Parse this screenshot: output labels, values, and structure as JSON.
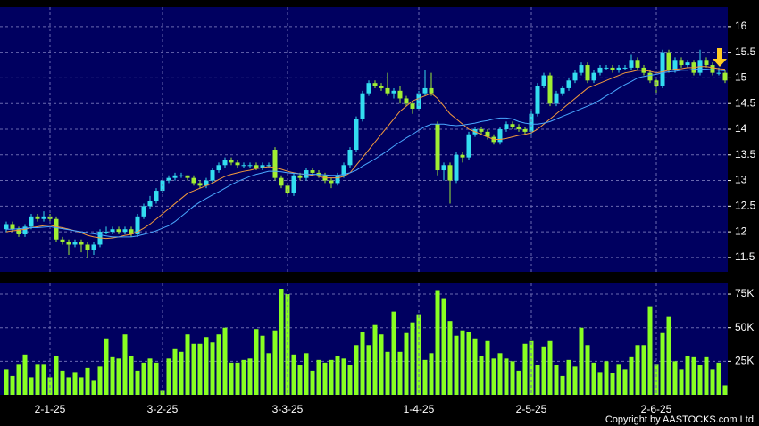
{
  "chart_data": [
    {
      "type": "candlestick",
      "ylim": [
        11.22,
        16.38
      ],
      "yticks": [
        11.5,
        12,
        12.5,
        13,
        13.5,
        14,
        14.5,
        15,
        15.5,
        16
      ],
      "grid": true,
      "up_color": "#33ddf0",
      "down_color": "#a0ee33",
      "ohlc": [
        [
          12.05,
          12.2,
          12.0,
          12.15
        ],
        [
          12.15,
          12.2,
          12.0,
          12.05
        ],
        [
          12.05,
          12.1,
          11.9,
          11.95
        ],
        [
          11.95,
          12.15,
          11.9,
          12.1
        ],
        [
          12.1,
          12.35,
          12.05,
          12.3
        ],
        [
          12.3,
          12.35,
          12.2,
          12.25
        ],
        [
          12.25,
          12.4,
          12.2,
          12.3
        ],
        [
          12.3,
          12.35,
          12.2,
          12.25
        ],
        [
          12.25,
          12.3,
          11.8,
          11.85
        ],
        [
          11.85,
          11.9,
          11.75,
          11.8
        ],
        [
          11.8,
          11.85,
          11.55,
          11.75
        ],
        [
          11.75,
          11.85,
          11.7,
          11.8
        ],
        [
          11.8,
          11.85,
          11.6,
          11.75
        ],
        [
          11.75,
          11.8,
          11.5,
          11.65
        ],
        [
          11.65,
          11.8,
          11.55,
          11.75
        ],
        [
          11.75,
          12.05,
          11.7,
          12.0
        ],
        [
          12.0,
          12.1,
          11.95,
          12.0
        ],
        [
          12.0,
          12.1,
          11.95,
          12.05
        ],
        [
          12.05,
          12.1,
          11.95,
          12.0
        ],
        [
          12.0,
          12.1,
          11.95,
          12.05
        ],
        [
          12.05,
          12.1,
          11.9,
          11.95
        ],
        [
          11.95,
          12.35,
          11.9,
          12.3
        ],
        [
          12.3,
          12.55,
          12.25,
          12.5
        ],
        [
          12.5,
          12.7,
          12.45,
          12.6
        ],
        [
          12.6,
          12.85,
          12.55,
          12.8
        ],
        [
          12.8,
          13.05,
          12.75,
          13.0
        ],
        [
          13.0,
          13.1,
          12.95,
          13.05
        ],
        [
          13.05,
          13.15,
          13.0,
          13.1
        ],
        [
          13.1,
          13.15,
          13.05,
          13.1
        ],
        [
          13.1,
          13.1,
          13.0,
          13.05
        ],
        [
          13.05,
          13.1,
          12.9,
          12.95
        ],
        [
          12.95,
          13.0,
          12.85,
          12.9
        ],
        [
          12.9,
          13.05,
          12.85,
          13.0
        ],
        [
          13.0,
          13.25,
          12.95,
          13.2
        ],
        [
          13.2,
          13.35,
          13.15,
          13.3
        ],
        [
          13.3,
          13.45,
          13.25,
          13.4
        ],
        [
          13.4,
          13.45,
          13.3,
          13.35
        ],
        [
          13.35,
          13.4,
          13.25,
          13.3
        ],
        [
          13.3,
          13.35,
          13.25,
          13.3
        ],
        [
          13.3,
          13.35,
          13.25,
          13.3
        ],
        [
          13.3,
          13.35,
          13.2,
          13.25
        ],
        [
          13.25,
          13.35,
          13.2,
          13.3
        ],
        [
          13.3,
          13.35,
          13.25,
          13.3
        ],
        [
          13.6,
          13.65,
          13.0,
          13.05
        ],
        [
          13.05,
          13.1,
          12.85,
          12.9
        ],
        [
          12.9,
          12.95,
          12.7,
          12.75
        ],
        [
          12.75,
          13.15,
          12.7,
          13.1
        ],
        [
          13.1,
          13.15,
          13.0,
          13.05
        ],
        [
          13.05,
          13.25,
          13.0,
          13.2
        ],
        [
          13.2,
          13.25,
          13.1,
          13.15
        ],
        [
          13.15,
          13.2,
          13.05,
          13.1
        ],
        [
          13.1,
          13.15,
          12.95,
          13.0
        ],
        [
          13.0,
          13.05,
          12.85,
          12.95
        ],
        [
          12.95,
          13.15,
          12.9,
          13.1
        ],
        [
          13.1,
          13.35,
          13.05,
          13.3
        ],
        [
          13.3,
          13.65,
          13.25,
          13.6
        ],
        [
          13.6,
          14.25,
          13.55,
          14.2
        ],
        [
          14.2,
          14.75,
          14.15,
          14.7
        ],
        [
          14.7,
          14.95,
          14.65,
          14.9
        ],
        [
          14.9,
          14.95,
          14.8,
          14.85
        ],
        [
          14.85,
          14.9,
          14.75,
          14.8
        ],
        [
          14.8,
          15.1,
          14.65,
          14.7
        ],
        [
          14.7,
          14.8,
          14.6,
          14.75
        ],
        [
          14.75,
          14.85,
          14.5,
          14.6
        ],
        [
          14.6,
          14.65,
          14.45,
          14.5
        ],
        [
          14.5,
          14.55,
          14.3,
          14.4
        ],
        [
          14.4,
          14.75,
          14.35,
          14.7
        ],
        [
          14.7,
          15.15,
          14.65,
          14.8
        ],
        [
          14.8,
          15.1,
          14.65,
          14.7
        ],
        [
          14.1,
          14.15,
          13.1,
          13.2
        ],
        [
          13.2,
          13.35,
          13.0,
          13.3
        ],
        [
          13.3,
          13.35,
          12.55,
          13.0
        ],
        [
          13.0,
          13.55,
          12.95,
          13.5
        ],
        [
          13.5,
          13.55,
          13.35,
          13.45
        ],
        [
          13.45,
          13.95,
          13.4,
          13.9
        ],
        [
          13.9,
          14.05,
          13.85,
          14.0
        ],
        [
          14.0,
          14.05,
          13.9,
          13.95
        ],
        [
          13.95,
          14.0,
          13.8,
          13.85
        ],
        [
          13.85,
          13.9,
          13.7,
          13.75
        ],
        [
          13.75,
          14.05,
          13.7,
          14.0
        ],
        [
          14.0,
          14.15,
          13.95,
          14.1
        ],
        [
          14.1,
          14.15,
          14.0,
          14.05
        ],
        [
          14.05,
          14.1,
          13.95,
          14.0
        ],
        [
          14.0,
          14.05,
          13.9,
          13.95
        ],
        [
          13.95,
          14.35,
          13.9,
          14.3
        ],
        [
          14.3,
          14.9,
          14.25,
          14.85
        ],
        [
          14.85,
          15.1,
          14.8,
          15.05
        ],
        [
          15.05,
          15.1,
          14.45,
          14.5
        ],
        [
          14.5,
          14.75,
          14.45,
          14.7
        ],
        [
          14.7,
          14.85,
          14.65,
          14.8
        ],
        [
          14.8,
          15.0,
          14.75,
          14.95
        ],
        [
          14.95,
          15.15,
          14.9,
          15.1
        ],
        [
          15.1,
          15.3,
          15.05,
          15.25
        ],
        [
          15.25,
          15.3,
          14.9,
          14.95
        ],
        [
          14.95,
          15.15,
          14.9,
          15.1
        ],
        [
          15.1,
          15.25,
          15.05,
          15.2
        ],
        [
          15.2,
          15.25,
          15.15,
          15.2
        ],
        [
          15.2,
          15.25,
          15.1,
          15.15
        ],
        [
          15.15,
          15.25,
          15.1,
          15.2
        ],
        [
          15.2,
          15.25,
          15.15,
          15.2
        ],
        [
          15.2,
          15.45,
          15.15,
          15.35
        ],
        [
          15.35,
          15.4,
          15.15,
          15.2
        ],
        [
          15.2,
          15.25,
          15.05,
          15.1
        ],
        [
          15.1,
          15.15,
          14.9,
          14.95
        ],
        [
          14.95,
          15.0,
          14.7,
          14.85
        ],
        [
          14.85,
          15.55,
          14.8,
          15.5
        ],
        [
          15.5,
          15.55,
          15.1,
          15.15
        ],
        [
          15.15,
          15.4,
          15.1,
          15.35
        ],
        [
          15.35,
          15.4,
          15.2,
          15.25
        ],
        [
          15.25,
          15.35,
          15.2,
          15.3
        ],
        [
          15.3,
          15.35,
          15.05,
          15.1
        ],
        [
          15.1,
          15.55,
          15.05,
          15.35
        ],
        [
          15.35,
          15.4,
          15.2,
          15.25
        ],
        [
          15.25,
          15.3,
          15.05,
          15.1
        ],
        [
          15.1,
          15.2,
          15.05,
          15.1
        ],
        [
          15.1,
          15.15,
          14.9,
          14.95
        ]
      ],
      "lines": [
        {
          "color": "#f39a3c",
          "values": [
            12.0,
            12.02,
            12.03,
            12.05,
            12.08,
            12.1,
            12.12,
            12.13,
            12.1,
            12.08,
            12.05,
            12.02,
            11.98,
            11.93,
            11.9,
            11.88,
            11.87,
            11.88,
            11.9,
            11.93,
            11.95,
            12.0,
            12.07,
            12.15,
            12.25,
            12.35,
            12.45,
            12.55,
            12.65,
            12.75,
            12.8,
            12.85,
            12.9,
            12.95,
            13.02,
            13.08,
            13.12,
            13.15,
            13.18,
            13.2,
            13.23,
            13.25,
            13.27,
            13.25,
            13.22,
            13.18,
            13.15,
            13.13,
            13.12,
            13.1,
            13.08,
            13.05,
            13.05,
            13.05,
            13.08,
            13.15,
            13.3,
            13.45,
            13.6,
            13.75,
            13.9,
            14.05,
            14.2,
            14.35,
            14.45,
            14.55,
            14.6,
            14.65,
            14.7,
            14.6,
            14.45,
            14.3,
            14.2,
            14.1,
            14.0,
            13.95,
            13.9,
            13.85,
            13.8,
            13.8,
            13.82,
            13.85,
            13.88,
            13.9,
            13.93,
            14.0,
            14.1,
            14.2,
            14.3,
            14.4,
            14.5,
            14.6,
            14.7,
            14.8,
            14.85,
            14.9,
            14.95,
            15.0,
            15.05,
            15.1,
            15.12,
            15.15,
            15.15,
            15.13,
            15.1,
            15.12,
            15.15,
            15.17,
            15.18,
            15.2,
            15.2,
            15.22,
            15.22,
            15.2,
            15.18,
            15.17
          ]
        },
        {
          "color": "#4aa8ff",
          "values": [
            12.05,
            12.05,
            12.06,
            12.07,
            12.08,
            12.08,
            12.09,
            12.1,
            12.08,
            12.06,
            12.04,
            12.02,
            12.0,
            11.98,
            11.96,
            11.94,
            11.92,
            11.9,
            11.9,
            11.9,
            11.9,
            11.92,
            11.95,
            11.98,
            12.02,
            12.07,
            12.12,
            12.2,
            12.3,
            12.4,
            12.5,
            12.58,
            12.65,
            12.72,
            12.78,
            12.85,
            12.92,
            12.98,
            13.03,
            13.08,
            13.12,
            13.15,
            13.18,
            13.18,
            13.17,
            13.15,
            13.14,
            13.13,
            13.12,
            13.12,
            13.12,
            13.11,
            13.1,
            13.1,
            13.12,
            13.15,
            13.2,
            13.28,
            13.35,
            13.42,
            13.5,
            13.58,
            13.67,
            13.75,
            13.83,
            13.9,
            13.98,
            14.05,
            14.1,
            14.1,
            14.1,
            14.08,
            14.07,
            14.08,
            14.1,
            14.12,
            14.15,
            14.17,
            14.2,
            14.22,
            14.22,
            14.2,
            14.15,
            14.12,
            14.1,
            14.1,
            14.12,
            14.15,
            14.2,
            14.25,
            14.3,
            14.35,
            14.4,
            14.45,
            14.5,
            14.57,
            14.65,
            14.72,
            14.8,
            14.87,
            14.93,
            15.0,
            15.03,
            15.05,
            15.07,
            15.1,
            15.12,
            15.13,
            15.15,
            15.15,
            15.17,
            15.17,
            15.17,
            15.16,
            15.15,
            15.14
          ]
        }
      ]
    },
    {
      "type": "bar",
      "color": "#88ff22",
      "ylim": [
        0,
        83000
      ],
      "yticks": [
        {
          "value": 25000,
          "label": "25K"
        },
        {
          "value": 50000,
          "label": "50K"
        },
        {
          "value": 75000,
          "label": "75K"
        }
      ],
      "grid": true,
      "categories": [
        null,
        null,
        null,
        null,
        null,
        null,
        null,
        "2-1-25",
        null,
        null,
        null,
        null,
        null,
        null,
        null,
        null,
        null,
        null,
        null,
        null,
        null,
        null,
        null,
        null,
        null,
        "3-2-25",
        null,
        null,
        null,
        null,
        null,
        null,
        null,
        null,
        null,
        null,
        null,
        null,
        null,
        null,
        null,
        null,
        null,
        null,
        null,
        "3-3-25",
        null,
        null,
        null,
        null,
        null,
        null,
        null,
        null,
        null,
        null,
        null,
        null,
        null,
        null,
        null,
        null,
        null,
        null,
        null,
        null,
        "1-4-25",
        null,
        null,
        null,
        null,
        null,
        null,
        null,
        null,
        null,
        null,
        null,
        null,
        null,
        null,
        null,
        null,
        null,
        "2-5-25",
        null,
        null,
        null,
        null,
        null,
        null,
        null,
        null,
        null,
        null,
        null,
        null,
        null,
        null,
        null,
        null,
        null,
        null,
        null,
        "2-6-25",
        null,
        null,
        null,
        null,
        null,
        null,
        null,
        null,
        null,
        null,
        null
      ],
      "values": [
        19000,
        14000,
        23000,
        30000,
        13000,
        23000,
        23000,
        13000,
        29000,
        18000,
        13000,
        17000,
        13000,
        20000,
        11000,
        21000,
        42000,
        28000,
        27000,
        45000,
        29000,
        18000,
        24000,
        27000,
        24000,
        3000,
        27000,
        34000,
        32000,
        45000,
        38000,
        38000,
        43000,
        39000,
        45000,
        50000,
        24000,
        24000,
        26000,
        27000,
        49000,
        44000,
        31000,
        48000,
        79000,
        75000,
        30000,
        22000,
        31000,
        18000,
        26000,
        24000,
        26000,
        29000,
        27000,
        22000,
        37000,
        47000,
        37000,
        52000,
        45000,
        32000,
        62000,
        32000,
        46000,
        54000,
        60000,
        26000,
        31000,
        78000,
        72000,
        55000,
        44000,
        48000,
        47000,
        42000,
        29000,
        40000,
        27000,
        31000,
        27000,
        25000,
        18000,
        38000,
        40000,
        22000,
        36000,
        40000,
        22000,
        14000,
        26000,
        21000,
        50000,
        37000,
        24000,
        17000,
        25000,
        16000,
        23000,
        19000,
        28000,
        37000,
        37000,
        66000,
        23000,
        46000,
        58000,
        25000,
        19000,
        29000,
        28000,
        22000,
        28000,
        19000,
        24000,
        7000
      ]
    }
  ],
  "copyright": "Copyright by AASTOCKS.com Ltd."
}
